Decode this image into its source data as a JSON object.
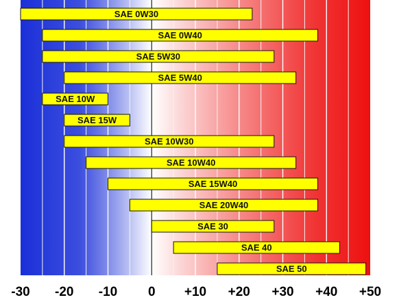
{
  "chart_data": {
    "type": "bar",
    "orientation": "horizontal-range",
    "xlim": [
      -30,
      50
    ],
    "xticks": [
      -30,
      -20,
      -10,
      0,
      10,
      20,
      30,
      40,
      50
    ],
    "xtick_labels": [
      "-30",
      "-20",
      "-10",
      "0",
      "+10",
      "+20",
      "+30",
      "+40",
      "+50"
    ],
    "grid": "vertical lines every 5 units",
    "background_gradient": {
      "cold_color": "#1a2fd8",
      "neutral_color": "#ffffff",
      "hot_color": "#ee1010",
      "neutral_at": 0
    },
    "bar_color": "#ffff00",
    "bars": [
      {
        "label": "SAE 0W30",
        "start": -30,
        "end": 23
      },
      {
        "label": "SAE 0W40",
        "start": -25,
        "end": 38
      },
      {
        "label": "SAE 5W30",
        "start": -25,
        "end": 28
      },
      {
        "label": "SAE 5W40",
        "start": -20,
        "end": 33
      },
      {
        "label": "SAE 10W",
        "start": -25,
        "end": -10
      },
      {
        "label": "SAE 15W",
        "start": -20,
        "end": -5
      },
      {
        "label": "SAE 10W30",
        "start": -20,
        "end": 28
      },
      {
        "label": "SAE 10W40",
        "start": -15,
        "end": 33
      },
      {
        "label": "SAE 15W40",
        "start": -10,
        "end": 38
      },
      {
        "label": "SAE 20W40",
        "start": -5,
        "end": 38
      },
      {
        "label": "SAE 30",
        "start": 0,
        "end": 28
      },
      {
        "label": "SAE 40",
        "start": 5,
        "end": 43
      },
      {
        "label": "SAE 50",
        "start": 15,
        "end": 49
      }
    ]
  }
}
